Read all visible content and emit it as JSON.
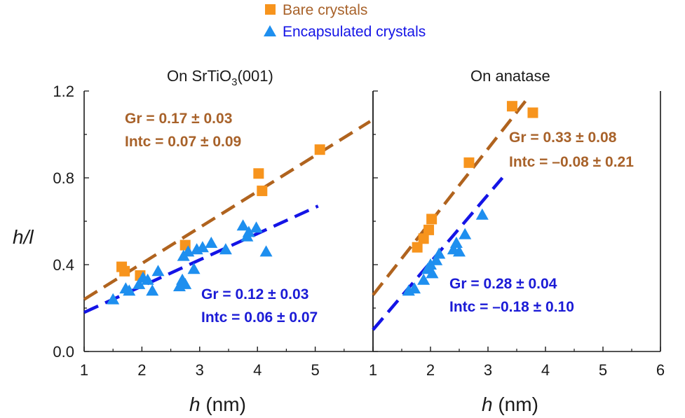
{
  "colors": {
    "bare_marker": "#F7941D",
    "bare_line": "#B0631E",
    "bare_text": "#A8622A",
    "enc_marker": "#1E8FEF",
    "enc_line": "#1414E6",
    "enc_text": "#1B1BD6",
    "axis": "#1a1a1a"
  },
  "legend": {
    "bare": "Bare crystals",
    "encapsulated": "Encapsulated crystals"
  },
  "axes": {
    "ylabel": "h/l",
    "xlabel_var": "h",
    "xlabel_unit": " (nm)",
    "left_title_main": "On SrTiO",
    "left_title_sub": "3",
    "left_title_tail": "(001)",
    "right_title": "On anatase"
  },
  "chart_data": [
    {
      "type": "scatter",
      "panel": "On SrTiO3(001)",
      "xlim": [
        1,
        6
      ],
      "ylim": [
        0,
        1.2
      ],
      "xticks": [
        "1",
        "2",
        "3",
        "4",
        "5"
      ],
      "yticks": [
        "0.0",
        "0.4",
        "0.8",
        "1.2"
      ],
      "series": [
        {
          "name": "Bare crystals",
          "marker": "square",
          "points": [
            [
              1.65,
              0.39
            ],
            [
              1.7,
              0.37
            ],
            [
              1.97,
              0.35
            ],
            [
              2.75,
              0.49
            ],
            [
              4.02,
              0.82
            ],
            [
              4.08,
              0.74
            ],
            [
              5.08,
              0.93
            ]
          ],
          "fit": {
            "x": [
              1,
              5.95
            ],
            "y": [
              0.24,
              1.06
            ]
          },
          "annotation": [
            "Gr = 0.17 ± 0.03",
            "Intc = 0.07 ± 0.09"
          ]
        },
        {
          "name": "Encapsulated crystals",
          "marker": "triangle",
          "points": [
            [
              1.5,
              0.24
            ],
            [
              1.72,
              0.29
            ],
            [
              1.78,
              0.28
            ],
            [
              1.95,
              0.31
            ],
            [
              2.02,
              0.34
            ],
            [
              2.1,
              0.33
            ],
            [
              2.18,
              0.28
            ],
            [
              2.28,
              0.37
            ],
            [
              2.65,
              0.3
            ],
            [
              2.7,
              0.33
            ],
            [
              2.75,
              0.31
            ],
            [
              2.72,
              0.44
            ],
            [
              2.8,
              0.46
            ],
            [
              2.9,
              0.38
            ],
            [
              2.95,
              0.47
            ],
            [
              3.05,
              0.48
            ],
            [
              3.2,
              0.5
            ],
            [
              3.45,
              0.47
            ],
            [
              3.75,
              0.58
            ],
            [
              3.82,
              0.53
            ],
            [
              3.85,
              0.55
            ],
            [
              3.98,
              0.57
            ],
            [
              4.15,
              0.46
            ]
          ],
          "fit": {
            "x": [
              1,
              5.05
            ],
            "y": [
              0.18,
              0.67
            ]
          },
          "annotation": [
            "Gr = 0.12 ± 0.03",
            "Intc = 0.06 ± 0.07"
          ]
        }
      ]
    },
    {
      "type": "scatter",
      "panel": "On anatase",
      "xlim": [
        1,
        6
      ],
      "ylim": [
        0,
        1.2
      ],
      "xticks": [
        "1",
        "2",
        "3",
        "4",
        "5",
        "6"
      ],
      "yticks": [],
      "series": [
        {
          "name": "Bare crystals",
          "marker": "square",
          "points": [
            [
              1.77,
              0.48
            ],
            [
              1.88,
              0.52
            ],
            [
              1.97,
              0.56
            ],
            [
              2.02,
              0.61
            ],
            [
              2.67,
              0.87
            ],
            [
              3.42,
              1.13
            ],
            [
              3.78,
              1.1
            ]
          ],
          "fit": {
            "x": [
              1,
              3.7
            ],
            "y": [
              0.26,
              1.17
            ]
          },
          "annotation": [
            "Gr = 0.33 ± 0.08",
            "Intc = –0.08 ± 0.21"
          ]
        },
        {
          "name": "Encapsulated crystals",
          "marker": "triangle",
          "points": [
            [
              1.62,
              0.28
            ],
            [
              1.72,
              0.29
            ],
            [
              1.88,
              0.33
            ],
            [
              1.95,
              0.38
            ],
            [
              2.0,
              0.4
            ],
            [
              2.03,
              0.36
            ],
            [
              2.1,
              0.42
            ],
            [
              2.15,
              0.45
            ],
            [
              2.4,
              0.47
            ],
            [
              2.45,
              0.5
            ],
            [
              2.5,
              0.46
            ],
            [
              2.6,
              0.54
            ],
            [
              2.9,
              0.63
            ]
          ],
          "fit": {
            "x": [
              1,
              3.25
            ],
            "y": [
              0.1,
              0.8
            ]
          },
          "annotation": [
            "Gr = 0.28 ± 0.04",
            "Intc = –0.18 ± 0.10"
          ]
        }
      ]
    }
  ]
}
